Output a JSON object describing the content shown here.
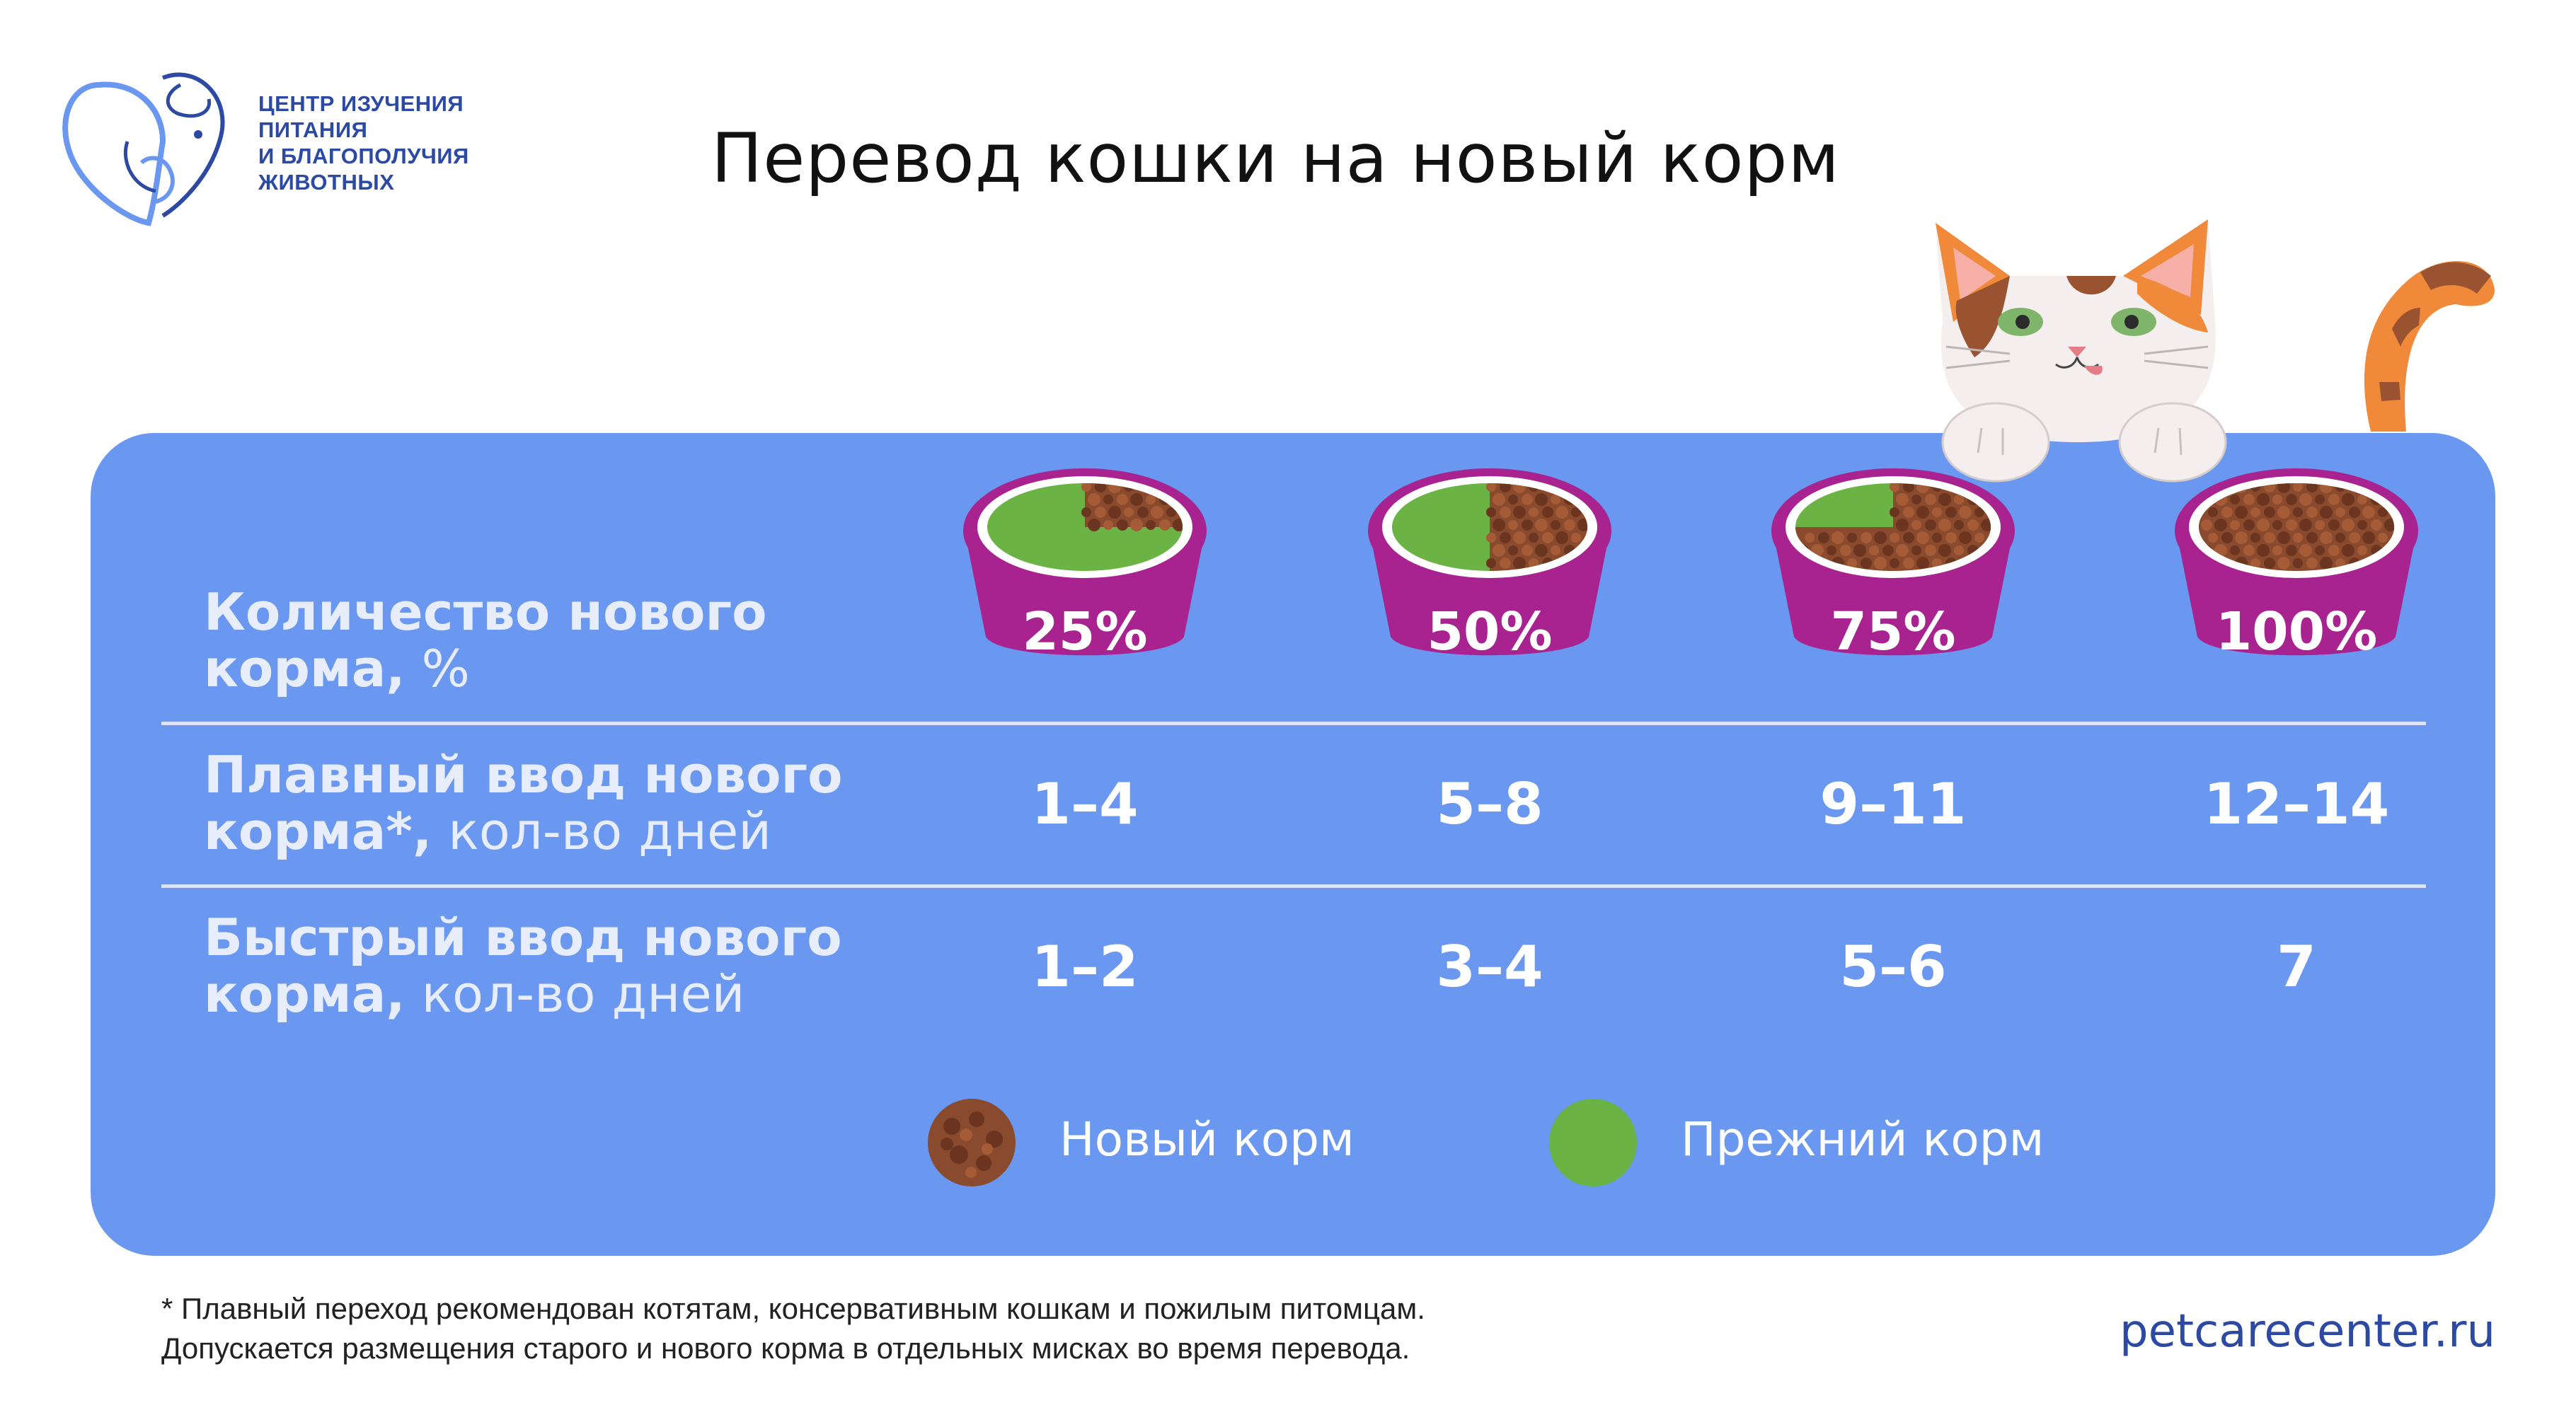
{
  "header": {
    "org_lines": [
      "ЦЕНТР ИЗУЧЕНИЯ",
      "ПИТАНИЯ",
      "И БЛАГОПОЛУЧИЯ",
      "ЖИВОТНЫХ"
    ],
    "title": "Перевод кошки на новый корм"
  },
  "rows": [
    {
      "bold": "Количество нового корма,",
      "light": " %"
    },
    {
      "bold": "Плавный ввод нового корма*,",
      "light": " кол-во дней"
    },
    {
      "bold": "Быстрый ввод нового корма,",
      "light": " кол-во дней"
    }
  ],
  "stages": [
    {
      "percent_label": "25%",
      "new_food_fraction": 0.25,
      "smooth_days": "1–4",
      "fast_days": "1–2"
    },
    {
      "percent_label": "50%",
      "new_food_fraction": 0.5,
      "smooth_days": "5–8",
      "fast_days": "3–4"
    },
    {
      "percent_label": "75%",
      "new_food_fraction": 0.75,
      "smooth_days": "9–11",
      "fast_days": "5–6"
    },
    {
      "percent_label": "100%",
      "new_food_fraction": 1.0,
      "smooth_days": "12–14",
      "fast_days": "7"
    }
  ],
  "legend": {
    "new_food": "Новый корм",
    "old_food": "Прежний корм"
  },
  "footnote": {
    "line1": "* Плавный переход рекомендован котятам, консервативным кошкам и пожилым питомцам.",
    "line2": "Допускается размещения старого и нового корма в отдельных мисках во время перевода."
  },
  "website": "petcarecenter.ru",
  "colors": {
    "panel": "#6a97ef",
    "bowl": "#a8238f",
    "old_food": "#6ab344",
    "new_food": "#8a4a2e",
    "brand": "#2c4aa3"
  },
  "icons": [
    "pet-logo-icon",
    "cat-illustration",
    "food-bowl-icon"
  ]
}
